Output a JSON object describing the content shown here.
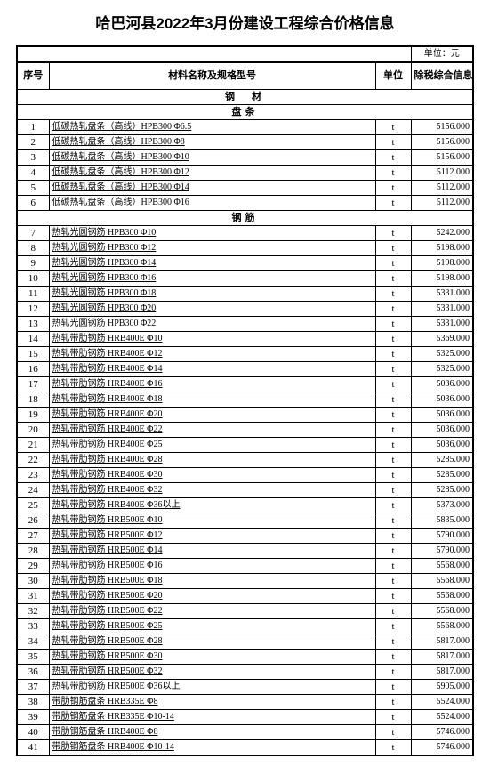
{
  "title": "哈巴河县2022年3月份建设工程综合价格信息",
  "unitLabel": "单位：元",
  "headers": {
    "seq": "序号",
    "name": "材料名称及规格型号",
    "unit": "单位",
    "price": "除税综合信息价"
  },
  "sections": [
    {
      "type": "section",
      "label": "钢　材"
    },
    {
      "type": "section",
      "label": "盘条"
    },
    {
      "type": "row",
      "seq": "1",
      "name": "低碳热轧盘条（高线）HPB300 Φ6.5",
      "unit": "t",
      "price": "5156.000"
    },
    {
      "type": "row",
      "seq": "2",
      "name": "低碳热轧盘条（高线）HPB300 Φ8",
      "unit": "t",
      "price": "5156.000"
    },
    {
      "type": "row",
      "seq": "3",
      "name": "低碳热轧盘条（高线）HPB300 Φ10",
      "unit": "t",
      "price": "5156.000"
    },
    {
      "type": "row",
      "seq": "4",
      "name": "低碳热轧盘条（高线）HPB300 Φ12",
      "unit": "t",
      "price": "5112.000"
    },
    {
      "type": "row",
      "seq": "5",
      "name": "低碳热轧盘条（高线）HPB300 Φ14",
      "unit": "t",
      "price": "5112.000"
    },
    {
      "type": "row",
      "seq": "6",
      "name": "低碳热轧盘条（高线）HPB300 Φ16",
      "unit": "t",
      "price": "5112.000"
    },
    {
      "type": "section",
      "label": "钢筋"
    },
    {
      "type": "row",
      "seq": "7",
      "name": "热轧光圆钢筋 HPB300 Φ10",
      "unit": "t",
      "price": "5242.000"
    },
    {
      "type": "row",
      "seq": "8",
      "name": "热轧光圆钢筋 HPB300 Φ12",
      "unit": "t",
      "price": "5198.000"
    },
    {
      "type": "row",
      "seq": "9",
      "name": "热轧光圆钢筋 HPB300 Φ14",
      "unit": "t",
      "price": "5198.000"
    },
    {
      "type": "row",
      "seq": "10",
      "name": "热轧光圆钢筋 HPB300 Φ16",
      "unit": "t",
      "price": "5198.000"
    },
    {
      "type": "row",
      "seq": "11",
      "name": "热轧光圆钢筋 HPB300 Φ18",
      "unit": "t",
      "price": "5331.000"
    },
    {
      "type": "row",
      "seq": "12",
      "name": "热轧光圆钢筋 HPB300 Φ20",
      "unit": "t",
      "price": "5331.000"
    },
    {
      "type": "row",
      "seq": "13",
      "name": "热轧光圆钢筋 HPB300 Φ22",
      "unit": "t",
      "price": "5331.000"
    },
    {
      "type": "row",
      "seq": "14",
      "name": "热轧带肋钢筋 HRB400E Φ10",
      "unit": "t",
      "price": "5369.000"
    },
    {
      "type": "row",
      "seq": "15",
      "name": "热轧带肋钢筋 HRB400E Φ12",
      "unit": "t",
      "price": "5325.000"
    },
    {
      "type": "row",
      "seq": "16",
      "name": "热轧带肋钢筋 HRB400E Φ14",
      "unit": "t",
      "price": "5325.000"
    },
    {
      "type": "row",
      "seq": "17",
      "name": "热轧带肋钢筋 HRB400E Φ16",
      "unit": "t",
      "price": "5036.000"
    },
    {
      "type": "row",
      "seq": "18",
      "name": "热轧带肋钢筋 HRB400E Φ18",
      "unit": "t",
      "price": "5036.000"
    },
    {
      "type": "row",
      "seq": "19",
      "name": "热轧带肋钢筋 HRB400E Φ20",
      "unit": "t",
      "price": "5036.000"
    },
    {
      "type": "row",
      "seq": "20",
      "name": "热轧带肋钢筋 HRB400E Φ22",
      "unit": "t",
      "price": "5036.000"
    },
    {
      "type": "row",
      "seq": "21",
      "name": "热轧带肋钢筋 HRB400E Φ25",
      "unit": "t",
      "price": "5036.000"
    },
    {
      "type": "row",
      "seq": "22",
      "name": "热轧带肋钢筋 HRB400E Φ28",
      "unit": "t",
      "price": "5285.000"
    },
    {
      "type": "row",
      "seq": "23",
      "name": "热轧带肋钢筋 HRB400E Φ30",
      "unit": "t",
      "price": "5285.000"
    },
    {
      "type": "row",
      "seq": "24",
      "name": "热轧带肋钢筋 HRB400E Φ32",
      "unit": "t",
      "price": "5285.000"
    },
    {
      "type": "row",
      "seq": "25",
      "name": "热轧带肋钢筋 HRB400E Φ36以上",
      "unit": "t",
      "price": "5373.000"
    },
    {
      "type": "row",
      "seq": "26",
      "name": "热轧带肋钢筋 HRB500E Φ10",
      "unit": "t",
      "price": "5835.000"
    },
    {
      "type": "row",
      "seq": "27",
      "name": "热轧带肋钢筋 HRB500E Φ12",
      "unit": "t",
      "price": "5790.000"
    },
    {
      "type": "row",
      "seq": "28",
      "name": "热轧带肋钢筋 HRB500E Φ14",
      "unit": "t",
      "price": "5790.000"
    },
    {
      "type": "row",
      "seq": "29",
      "name": "热轧带肋钢筋 HRB500E Φ16",
      "unit": "t",
      "price": "5568.000"
    },
    {
      "type": "row",
      "seq": "30",
      "name": "热轧带肋钢筋 HRB500E Φ18",
      "unit": "t",
      "price": "5568.000"
    },
    {
      "type": "row",
      "seq": "31",
      "name": "热轧带肋钢筋 HRB500E Φ20",
      "unit": "t",
      "price": "5568.000"
    },
    {
      "type": "row",
      "seq": "32",
      "name": "热轧带肋钢筋 HRB500E Φ22",
      "unit": "t",
      "price": "5568.000"
    },
    {
      "type": "row",
      "seq": "33",
      "name": "热轧带肋钢筋 HRB500E Φ25",
      "unit": "t",
      "price": "5568.000"
    },
    {
      "type": "row",
      "seq": "34",
      "name": "热轧带肋钢筋 HRB500E Φ28",
      "unit": "t",
      "price": "5817.000"
    },
    {
      "type": "row",
      "seq": "35",
      "name": "热轧带肋钢筋 HRB500E Φ30",
      "unit": "t",
      "price": "5817.000"
    },
    {
      "type": "row",
      "seq": "36",
      "name": "热轧带肋钢筋 HRB500E Φ32",
      "unit": "t",
      "price": "5817.000"
    },
    {
      "type": "row",
      "seq": "37",
      "name": "热轧带肋钢筋 HRB500E Φ36以上",
      "unit": "t",
      "price": "5905.000"
    },
    {
      "type": "row",
      "seq": "38",
      "name": "带肋钢筋盘条 HRB335E Φ8",
      "unit": "t",
      "price": "5524.000"
    },
    {
      "type": "row",
      "seq": "39",
      "name": "带肋钢筋盘条 HRB335E Φ10-14",
      "unit": "t",
      "price": "5524.000"
    },
    {
      "type": "row",
      "seq": "40",
      "name": "带肋钢筋盘条 HRB400E Φ8",
      "unit": "t",
      "price": "5746.000"
    },
    {
      "type": "row",
      "seq": "41",
      "name": "带肋钢筋盘条 HRB400E Φ10-14",
      "unit": "t",
      "price": "5746.000"
    }
  ]
}
